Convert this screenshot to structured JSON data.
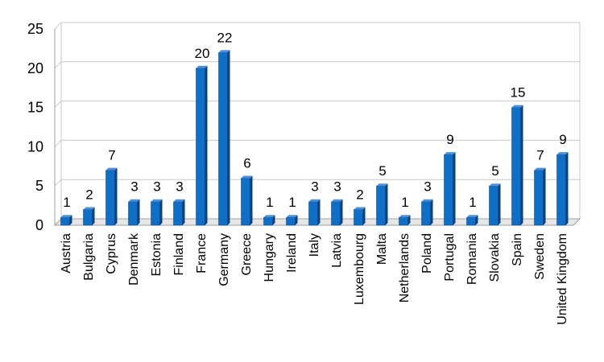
{
  "chart_data": {
    "type": "bar",
    "title": "",
    "xlabel": "",
    "ylabel": "",
    "ylim": [
      0,
      25
    ],
    "yticks": [
      0,
      5,
      10,
      15,
      20,
      25
    ],
    "grid": true,
    "legend": "none",
    "categories": [
      "Austria",
      "Bulgaria",
      "Cyprus",
      "Denmark",
      "Estonia",
      "Finland",
      "France",
      "Germany",
      "Greece",
      "Hungary",
      "Ireland",
      "Italy",
      "Latvia",
      "Luxembourg",
      "Malta",
      "Netherlands",
      "Poland",
      "Portugal",
      "Romania",
      "Slovakia",
      "Spain",
      "Sweden",
      "United Kingdom"
    ],
    "values": [
      1,
      2,
      7,
      3,
      3,
      3,
      20,
      22,
      6,
      1,
      1,
      3,
      3,
      2,
      5,
      1,
      3,
      9,
      1,
      5,
      15,
      7,
      9
    ],
    "colors": {
      "bar_front": "#0f6fc6",
      "bar_top": "#4a8fd8",
      "bar_side": "#0a3f80",
      "grid": "#c8c8c8",
      "axis": "#a0a0a0"
    }
  }
}
